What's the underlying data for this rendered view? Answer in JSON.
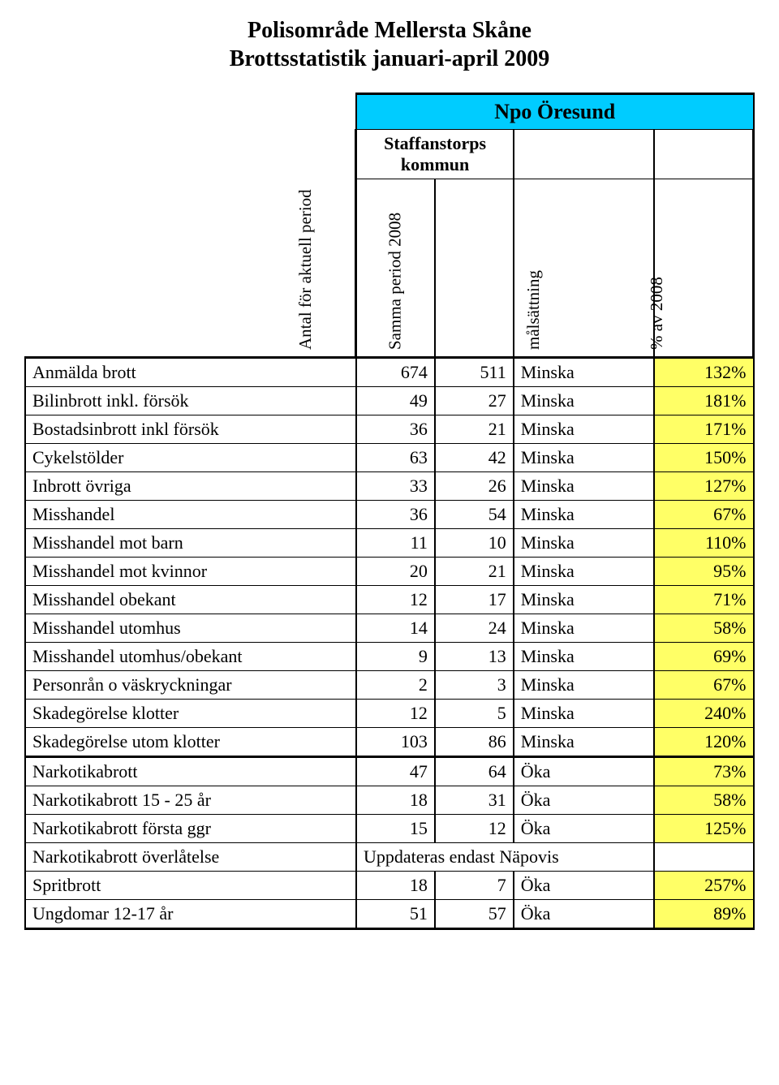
{
  "title": {
    "line1": "Polisområde Mellersta Skåne",
    "line2": "Brottsstatistik  januari-april 2009"
  },
  "header": {
    "region": "Npo Öresund",
    "subtitle": "Staffanstorps kommun",
    "columns": [
      "Antal för aktuell period",
      "Samma period 2008",
      "målsättning",
      "% av 2008"
    ]
  },
  "colors": {
    "region_bg": "#00ccff",
    "pct_bg": "#ffff66",
    "border": "#000000",
    "page_bg": "#ffffff"
  },
  "sections": [
    {
      "rows": [
        {
          "label": "Anmälda brott",
          "a": "674",
          "b": "511",
          "goal": "Minska",
          "pct": "132%"
        },
        {
          "label": "Bilinbrott inkl. försök",
          "a": "49",
          "b": "27",
          "goal": "Minska",
          "pct": "181%"
        },
        {
          "label": "Bostadsinbrott inkl försök",
          "a": "36",
          "b": "21",
          "goal": "Minska",
          "pct": "171%"
        },
        {
          "label": "Cykelstölder",
          "a": "63",
          "b": "42",
          "goal": "Minska",
          "pct": "150%"
        },
        {
          "label": "Inbrott övriga",
          "a": "33",
          "b": "26",
          "goal": "Minska",
          "pct": "127%"
        },
        {
          "label": "Misshandel",
          "a": "36",
          "b": "54",
          "goal": "Minska",
          "pct": "67%"
        },
        {
          "label": "Misshandel mot barn",
          "a": "11",
          "b": "10",
          "goal": "Minska",
          "pct": "110%"
        },
        {
          "label": "Misshandel mot kvinnor",
          "a": "20",
          "b": "21",
          "goal": "Minska",
          "pct": "95%"
        },
        {
          "label": "Misshandel obekant",
          "a": "12",
          "b": "17",
          "goal": "Minska",
          "pct": "71%"
        },
        {
          "label": "Misshandel utomhus",
          "a": "14",
          "b": "24",
          "goal": "Minska",
          "pct": "58%"
        },
        {
          "label": "Misshandel utomhus/obekant",
          "a": "9",
          "b": "13",
          "goal": "Minska",
          "pct": "69%"
        },
        {
          "label": "Personrån o väskryckningar",
          "a": "2",
          "b": "3",
          "goal": "Minska",
          "pct": "67%"
        },
        {
          "label": "Skadegörelse klotter",
          "a": "12",
          "b": "5",
          "goal": "Minska",
          "pct": "240%"
        },
        {
          "label": "Skadegörelse utom klotter",
          "a": "103",
          "b": "86",
          "goal": "Minska",
          "pct": "120%"
        }
      ]
    },
    {
      "rows": [
        {
          "label": "Narkotikabrott",
          "a": "47",
          "b": "64",
          "goal": "Öka",
          "pct": "73%"
        },
        {
          "label": "Narkotikabrott 15 - 25 år",
          "a": "18",
          "b": "31",
          "goal": "Öka",
          "pct": "58%"
        },
        {
          "label": "Narkotikabrott första ggr",
          "a": "15",
          "b": "12",
          "goal": "Öka",
          "pct": "125%"
        },
        {
          "label": "Narkotikabrott överlåtelse",
          "a": "Uppdateras endast Näpovis",
          "b": "",
          "goal": "",
          "pct": "",
          "merged_ab_goal": true,
          "pct_blank": true
        },
        {
          "label": "Spritbrott",
          "a": "18",
          "b": "7",
          "goal": "Öka",
          "pct": "257%"
        },
        {
          "label": "Ungdomar 12-17 år",
          "a": "51",
          "b": "57",
          "goal": "Öka",
          "pct": "89%"
        }
      ]
    }
  ]
}
